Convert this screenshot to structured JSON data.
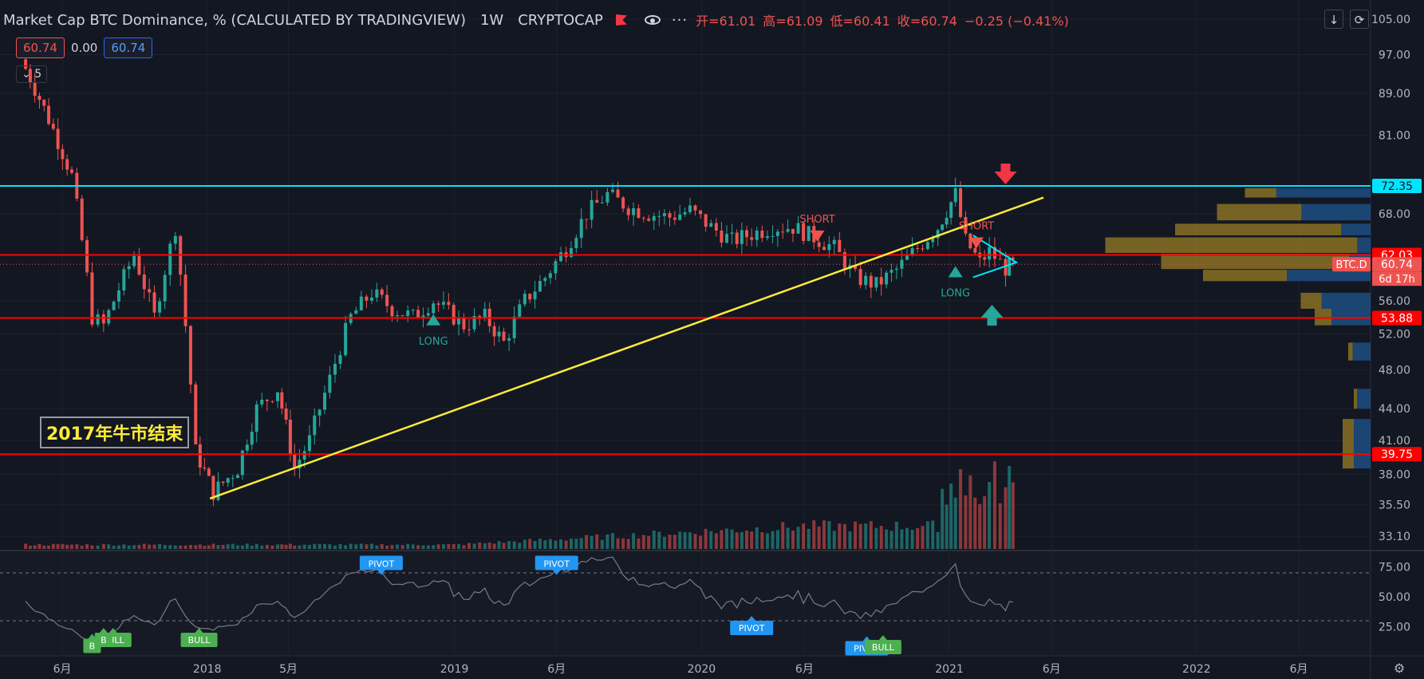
{
  "header": {
    "title": "Market Cap BTC Dominance, % (CALCULATED BY TRADINGVIEW)",
    "interval": "1W",
    "exchange": "CRYPTOCAP",
    "ohlc": {
      "open": "开=61.01",
      "high": "高=61.09",
      "low": "低=60.41",
      "close": "收=60.74",
      "change": "−0.25 (−0.41%)"
    }
  },
  "badges": {
    "left": "60.74",
    "mid": "0.00",
    "right": "60.74"
  },
  "collapse_label": "5",
  "note": "2017年牛市结束",
  "chart_data": {
    "type": "candlestick",
    "symbol": "BTC.D",
    "price_axis": {
      "ylim": [
        31.0,
        105.0
      ],
      "ticks": [
        "105.00",
        "97.00",
        "89.00",
        "81.00",
        "68.00",
        "56.00",
        "52.00",
        "48.00",
        "44.00",
        "41.00",
        "38.00",
        "35.50",
        "33.10"
      ],
      "scale": "log"
    },
    "price_labels": [
      {
        "text": "72.35",
        "value": 72.35,
        "color": "#00e5ff"
      },
      {
        "text": "62.03",
        "value": 62.03,
        "color": "#ff0000"
      },
      {
        "text": "60.74",
        "value": 60.74,
        "color": "#ef5350",
        "prefix": "BTC.D"
      },
      {
        "text": "53.88",
        "value": 53.88,
        "color": "#ff0000"
      },
      {
        "text": "39.75",
        "value": 39.75,
        "color": "#ff0000"
      }
    ],
    "countdown": "6d 17h",
    "x_labels": [
      {
        "text": "6月",
        "date": "2017-06"
      },
      {
        "text": "2018",
        "date": "2018-01"
      },
      {
        "text": "5月",
        "date": "2018-05"
      },
      {
        "text": "2019",
        "date": "2019-01"
      },
      {
        "text": "6月",
        "date": "2019-06"
      },
      {
        "text": "2020",
        "date": "2020-01"
      },
      {
        "text": "6月",
        "date": "2020-06"
      },
      {
        "text": "2021",
        "date": "2021-01"
      },
      {
        "text": "6月",
        "date": "2021-06"
      },
      {
        "text": "2022",
        "date": "2022-01"
      },
      {
        "text": "6月",
        "date": "2022-06"
      }
    ],
    "horizontal_lines": [
      {
        "value": 72.35,
        "color": "#00e5ff"
      },
      {
        "value": 62.03,
        "color": "#ff0000"
      },
      {
        "value": 53.88,
        "color": "#ff0000"
      },
      {
        "value": 39.75,
        "color": "#ff0000"
      }
    ],
    "trendline": {
      "from": [
        "2018-01-05",
        36.0
      ],
      "to": [
        "2021-05-20",
        70.5
      ],
      "color": "#ffeb3b"
    },
    "key_points": [
      [
        "2017-04-01",
        96
      ],
      [
        "2017-06-15",
        74
      ],
      [
        "2017-07-15",
        54
      ],
      [
        "2017-08-01",
        53
      ],
      [
        "2017-09-15",
        62
      ],
      [
        "2017-10-15",
        54
      ],
      [
        "2017-11-15",
        66
      ],
      [
        "2017-12-15",
        40
      ],
      [
        "2018-01-10",
        36.5
      ],
      [
        "2018-02-15",
        38.5
      ],
      [
        "2018-03-15",
        44
      ],
      [
        "2018-04-15",
        46
      ],
      [
        "2018-05-10",
        38.5
      ],
      [
        "2018-06-01",
        41
      ],
      [
        "2018-07-01",
        47
      ],
      [
        "2018-08-01",
        54
      ],
      [
        "2018-09-01",
        57
      ],
      [
        "2018-10-01",
        55
      ],
      [
        "2018-11-01",
        54
      ],
      [
        "2018-12-01",
        56
      ],
      [
        "2019-01-15",
        53
      ],
      [
        "2019-02-15",
        54
      ],
      [
        "2019-03-15",
        51
      ],
      [
        "2019-04-15",
        56
      ],
      [
        "2019-05-15",
        59
      ],
      [
        "2019-06-15",
        63
      ],
      [
        "2019-07-15",
        68
      ],
      [
        "2019-08-15",
        71
      ],
      [
        "2019-09-15",
        69
      ],
      [
        "2019-10-15",
        68
      ],
      [
        "2019-11-15",
        67.5
      ],
      [
        "2019-12-15",
        68.5
      ],
      [
        "2020-01-15",
        66
      ],
      [
        "2020-02-15",
        64
      ],
      [
        "2020-03-15",
        65
      ],
      [
        "2020-04-15",
        66
      ],
      [
        "2020-05-15",
        66
      ],
      [
        "2020-06-15",
        64.5
      ],
      [
        "2020-07-15",
        63
      ],
      [
        "2020-08-15",
        59
      ],
      [
        "2020-09-15",
        58
      ],
      [
        "2020-10-15",
        60
      ],
      [
        "2020-11-15",
        63
      ],
      [
        "2020-12-15",
        66
      ],
      [
        "2021-01-10",
        71
      ],
      [
        "2021-01-25",
        64
      ],
      [
        "2021-02-15",
        61
      ],
      [
        "2021-03-01",
        62.5
      ],
      [
        "2021-03-25",
        60.2
      ],
      [
        "2021-04-05",
        60.74
      ]
    ],
    "annotations": [
      {
        "text": "LONG",
        "date": "2018-12-01",
        "value": 53.0,
        "color": "#26a69a",
        "marker": "up"
      },
      {
        "text": "SHORT",
        "date": "2020-06-20",
        "value": 65.5,
        "color": "#ef5350",
        "marker": "down"
      },
      {
        "text": "SHORT",
        "date": "2021-02-10",
        "value": 64.5,
        "color": "#ef5350",
        "marker": "down"
      },
      {
        "text": "LONG",
        "date": "2021-01-10",
        "value": 59.0,
        "color": "#26a69a",
        "marker": "up"
      }
    ],
    "oscillator": {
      "ticks": [
        "75.00",
        "50.00",
        "25.00"
      ],
      "bands": [
        70,
        30
      ],
      "tags": [
        {
          "text": "PIVOT",
          "date": "2018-09-15",
          "value": 75,
          "color": "#2196f3",
          "side": "down"
        },
        {
          "text": "PIVOT",
          "date": "2019-06-01",
          "value": 75,
          "color": "#2196f3",
          "side": "down"
        },
        {
          "text": "PIVOT",
          "date": "2020-03-15",
          "value": 30,
          "color": "#2196f3",
          "side": "up"
        },
        {
          "text": "PIVOT",
          "date": "2020-09-01",
          "value": 13,
          "color": "#2196f3",
          "side": "up"
        },
        {
          "text": "BULL",
          "date": "2017-12-20",
          "value": 20,
          "color": "#4caf50",
          "side": "up"
        },
        {
          "text": "BULL",
          "date": "2017-08-15",
          "value": 20,
          "color": "#4caf50",
          "side": "up"
        },
        {
          "text": "BULL",
          "date": "2020-09-25",
          "value": 14,
          "color": "#4caf50",
          "side": "up"
        },
        {
          "text": "B",
          "date": "2017-07-15",
          "value": 15,
          "color": "#4caf50",
          "side": "up"
        },
        {
          "text": "B",
          "date": "2017-08-01",
          "value": 20,
          "color": "#4caf50",
          "side": "up"
        }
      ]
    }
  },
  "colors": {
    "up": "#26a69a",
    "down": "#ef5350",
    "bg": "#131722",
    "grid": "#1e222d",
    "axis_text": "#b2b5be"
  }
}
